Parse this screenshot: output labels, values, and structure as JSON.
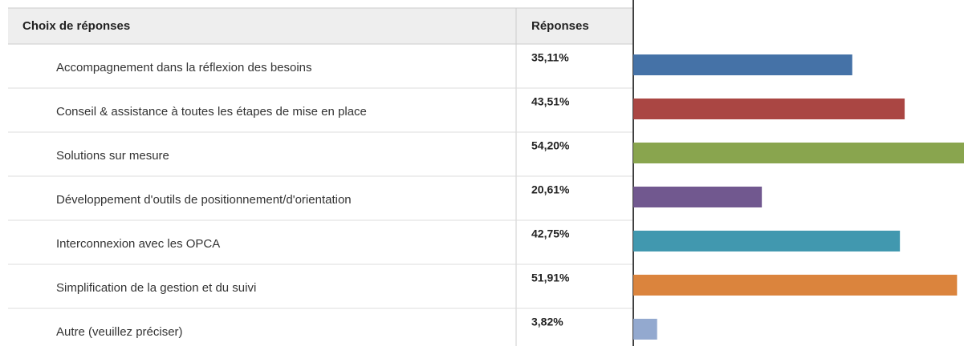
{
  "chart_data": {
    "type": "bar",
    "headers": [
      "Choix de réponses",
      "Réponses"
    ],
    "categories": [
      "Accompagnement dans la réflexion des besoins",
      "Conseil & assistance à toutes les étapes de mise en place",
      "Solutions sur mesure",
      "Développement d'outils de positionnement/d'orientation",
      "Interconnexion avec les OPCA",
      "Simplification de la gestion et du suivi",
      "Autre (veuillez préciser)"
    ],
    "values": [
      35.11,
      43.51,
      54.2,
      20.61,
      42.75,
      51.91,
      3.82
    ],
    "value_labels": [
      "35,11%",
      "43,51%",
      "54,20%",
      "20,61%",
      "42,75%",
      "51,91%",
      "3,82%"
    ],
    "colors": [
      "#4572a7",
      "#aa4643",
      "#89a54e",
      "#71588f",
      "#4198af",
      "#db843d",
      "#93a9cf"
    ]
  }
}
